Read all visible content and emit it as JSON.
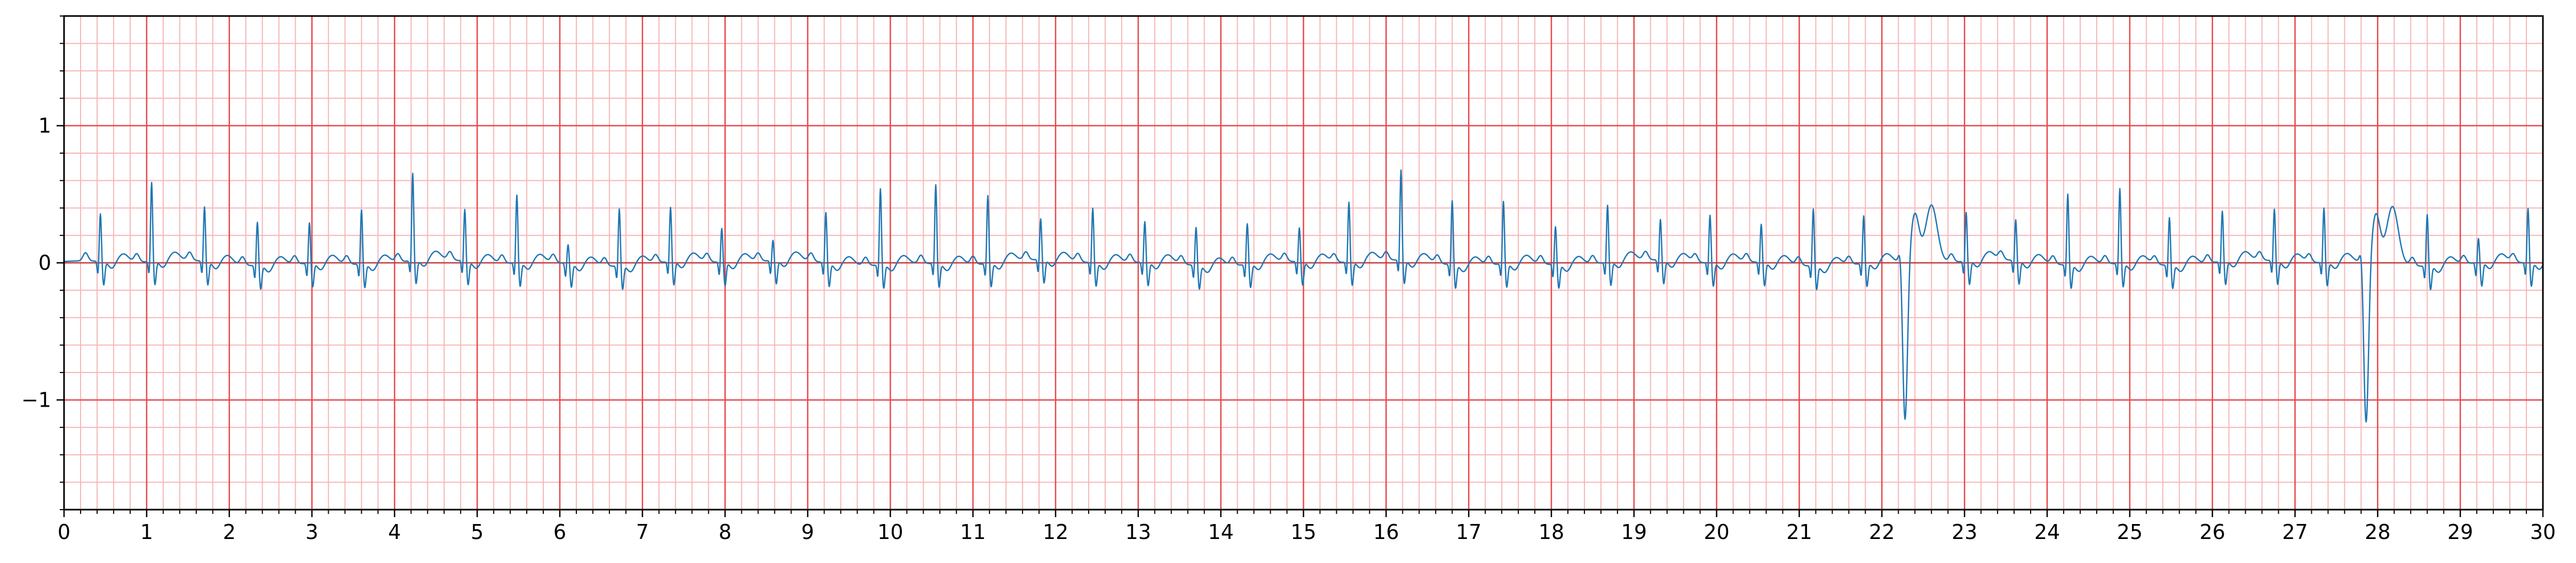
{
  "chart_data": {
    "type": "line",
    "title": "",
    "xlabel": "",
    "ylabel": "",
    "xlim": [
      0,
      30
    ],
    "ylim": [
      -1.8,
      1.8
    ],
    "x_ticks": [
      "0",
      "1",
      "2",
      "3",
      "4",
      "5",
      "6",
      "7",
      "8",
      "9",
      "10",
      "11",
      "12",
      "13",
      "14",
      "15",
      "16",
      "17",
      "18",
      "19",
      "20",
      "21",
      "22",
      "23",
      "24",
      "25",
      "26",
      "27",
      "28",
      "29",
      "30"
    ],
    "y_ticks": [
      {
        "value": 1,
        "label": "1"
      },
      {
        "value": 0,
        "label": "0"
      },
      {
        "value": -1,
        "label": "−1"
      }
    ],
    "grid": {
      "major_x_step": 1.0,
      "minor_x_step": 0.2,
      "major_y_step": 1.0,
      "minor_y_step": 0.2,
      "major_color": "#e8474a",
      "minor_color": "#f7b6b7"
    },
    "zero_line": true,
    "series": [
      {
        "color": "#1f77b4",
        "sampling_rate_hz": 50,
        "beats": [
          {
            "t": 0.44,
            "amp": 0.35,
            "kind": "normal"
          },
          {
            "t": 1.06,
            "amp": 0.58,
            "kind": "normal"
          },
          {
            "t": 1.7,
            "amp": 0.4,
            "kind": "normal"
          },
          {
            "t": 2.34,
            "amp": 0.32,
            "kind": "normal"
          },
          {
            "t": 2.97,
            "amp": 0.3,
            "kind": "normal"
          },
          {
            "t": 3.6,
            "amp": 0.4,
            "kind": "normal"
          },
          {
            "t": 4.22,
            "amp": 0.64,
            "kind": "normal"
          },
          {
            "t": 4.85,
            "amp": 0.38,
            "kind": "normal"
          },
          {
            "t": 5.48,
            "amp": 0.5,
            "kind": "normal"
          },
          {
            "t": 6.1,
            "amp": 0.14,
            "kind": "normal"
          },
          {
            "t": 6.72,
            "amp": 0.42,
            "kind": "normal"
          },
          {
            "t": 7.34,
            "amp": 0.4,
            "kind": "normal"
          },
          {
            "t": 7.96,
            "amp": 0.25,
            "kind": "normal"
          },
          {
            "t": 8.58,
            "amp": 0.15,
            "kind": "normal"
          },
          {
            "t": 9.22,
            "amp": 0.37,
            "kind": "normal"
          },
          {
            "t": 9.88,
            "amp": 0.56,
            "kind": "normal"
          },
          {
            "t": 10.55,
            "amp": 0.58,
            "kind": "normal"
          },
          {
            "t": 11.18,
            "amp": 0.5,
            "kind": "normal"
          },
          {
            "t": 11.82,
            "amp": 0.3,
            "kind": "normal"
          },
          {
            "t": 12.45,
            "amp": 0.4,
            "kind": "normal"
          },
          {
            "t": 13.08,
            "amp": 0.3,
            "kind": "normal"
          },
          {
            "t": 13.7,
            "amp": 0.28,
            "kind": "normal"
          },
          {
            "t": 14.32,
            "amp": 0.3,
            "kind": "normal"
          },
          {
            "t": 14.95,
            "amp": 0.25,
            "kind": "normal"
          },
          {
            "t": 15.55,
            "amp": 0.44,
            "kind": "normal"
          },
          {
            "t": 16.18,
            "amp": 0.66,
            "kind": "normal"
          },
          {
            "t": 16.8,
            "amp": 0.47,
            "kind": "normal"
          },
          {
            "t": 17.42,
            "amp": 0.46,
            "kind": "normal"
          },
          {
            "t": 18.05,
            "amp": 0.28,
            "kind": "normal"
          },
          {
            "t": 18.68,
            "amp": 0.42,
            "kind": "normal"
          },
          {
            "t": 19.32,
            "amp": 0.3,
            "kind": "normal"
          },
          {
            "t": 19.92,
            "amp": 0.35,
            "kind": "normal"
          },
          {
            "t": 20.54,
            "amp": 0.28,
            "kind": "normal"
          },
          {
            "t": 21.17,
            "amp": 0.42,
            "kind": "normal"
          },
          {
            "t": 21.78,
            "amp": 0.35,
            "kind": "normal"
          },
          {
            "t": 22.28,
            "amp": -1.18,
            "kind": "pvc"
          },
          {
            "t": 23.02,
            "amp": 0.36,
            "kind": "normal"
          },
          {
            "t": 23.62,
            "amp": 0.3,
            "kind": "normal"
          },
          {
            "t": 24.25,
            "amp": 0.52,
            "kind": "normal"
          },
          {
            "t": 24.88,
            "amp": 0.55,
            "kind": "normal"
          },
          {
            "t": 25.48,
            "amp": 0.35,
            "kind": "normal"
          },
          {
            "t": 26.12,
            "amp": 0.37,
            "kind": "normal"
          },
          {
            "t": 26.75,
            "amp": 0.38,
            "kind": "normal"
          },
          {
            "t": 27.35,
            "amp": 0.4,
            "kind": "normal"
          },
          {
            "t": 27.86,
            "amp": -1.2,
            "kind": "pvc"
          },
          {
            "t": 28.6,
            "amp": 0.38,
            "kind": "normal"
          },
          {
            "t": 29.22,
            "amp": 0.18,
            "kind": "normal"
          },
          {
            "t": 29.82,
            "amp": 0.4,
            "kind": "normal"
          }
        ]
      }
    ]
  }
}
